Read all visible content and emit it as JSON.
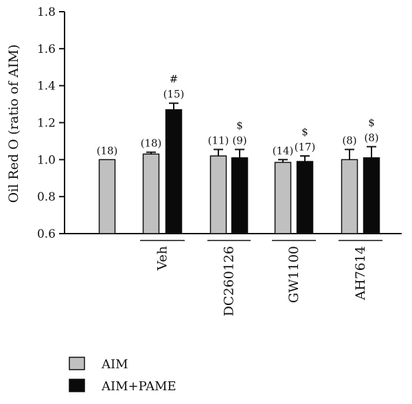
{
  "chart_data": {
    "type": "bar",
    "ylabel": "Oil Red O (ratio of AIM)",
    "ylim": [
      0.6,
      1.8
    ],
    "yticks": [
      "0.6",
      "0.8",
      "1.0",
      "1.2",
      "1.4",
      "1.6",
      "1.8"
    ],
    "groups": [
      {
        "label": "",
        "bars": [
          {
            "series": "AIM",
            "value": 1.0,
            "error": 0.0,
            "n": "(18)",
            "mark": ""
          }
        ]
      },
      {
        "label": "Veh",
        "bars": [
          {
            "series": "AIM",
            "value": 1.03,
            "error": 0.01,
            "n": "(18)",
            "mark": ""
          },
          {
            "series": "AIM+PAME",
            "value": 1.27,
            "error": 0.035,
            "n": "(15)",
            "mark": "#"
          }
        ]
      },
      {
        "label": "DC260126",
        "bars": [
          {
            "series": "AIM",
            "value": 1.02,
            "error": 0.035,
            "n": "(11)",
            "mark": ""
          },
          {
            "series": "AIM+PAME",
            "value": 1.01,
            "error": 0.045,
            "n": "(9)",
            "mark": "$"
          }
        ]
      },
      {
        "label": "GW1100",
        "bars": [
          {
            "series": "AIM",
            "value": 0.985,
            "error": 0.015,
            "n": "(14)",
            "mark": ""
          },
          {
            "series": "AIM+PAME",
            "value": 0.99,
            "error": 0.03,
            "n": "(17)",
            "mark": "$"
          }
        ]
      },
      {
        "label": "AH7614",
        "bars": [
          {
            "series": "AIM",
            "value": 1.0,
            "error": 0.055,
            "n": "(8)",
            "mark": ""
          },
          {
            "series": "AIM+PAME",
            "value": 1.01,
            "error": 0.06,
            "n": "(8)",
            "mark": "$"
          }
        ]
      }
    ],
    "legend": [
      {
        "name": "AIM",
        "color": "#c0c0c0"
      },
      {
        "name": "AIM+PAME",
        "color": "#0a0a0a"
      }
    ],
    "legend_position": "bottom-left",
    "grid": false
  }
}
